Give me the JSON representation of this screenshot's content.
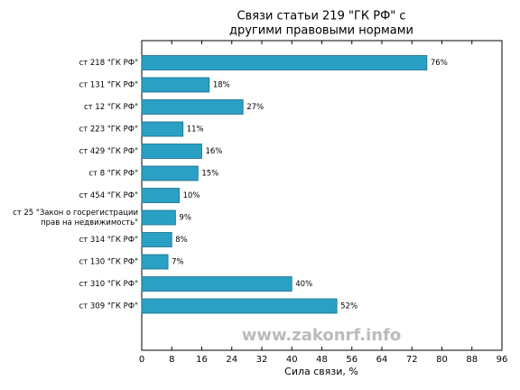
{
  "chart_data": {
    "type": "barh",
    "title": [
      "Связи статьи 219 \"ГК РФ\" с",
      "другими правовыми нормами"
    ],
    "categories": [
      "ст 218 \"ГК РФ\"",
      "ст 131 \"ГК РФ\"",
      "ст 12 \"ГК РФ\"",
      "ст 223 \"ГК РФ\"",
      "ст 429 \"ГК РФ\"",
      "ст 8 \"ГК РФ\"",
      "ст 454 \"ГК РФ\"",
      [
        "ст 25 \"Закон о госрегистрации",
        "прав на недвижимость\""
      ],
      "ст 314 \"ГК РФ\"",
      "ст 130 \"ГК РФ\"",
      "ст 310 \"ГК РФ\"",
      "ст 309 \"ГК РФ\""
    ],
    "values": [
      76,
      18,
      27,
      11,
      16,
      15,
      10,
      9,
      8,
      7,
      40,
      52
    ],
    "value_labels": [
      "76%",
      "18%",
      "27%",
      "11%",
      "16%",
      "15%",
      "10%",
      "9%",
      "8%",
      "7%",
      "40%",
      "52%"
    ],
    "color": "#2aa0c4",
    "xlim": [
      0,
      96
    ],
    "xticks": [
      0,
      8,
      16,
      24,
      32,
      40,
      48,
      56,
      64,
      72,
      80,
      88,
      96
    ],
    "xlabel": "Сила связи, %",
    "watermark": "www.zakonrf.info"
  }
}
